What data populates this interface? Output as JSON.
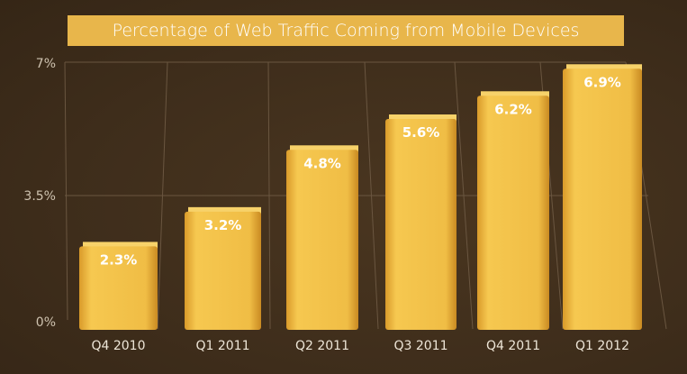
{
  "chart_data": {
    "type": "bar",
    "title": "Percentage of Web Traffic Coming from Mobile Devices",
    "categories": [
      "Q4 2010",
      "Q1 2011",
      "Q2 2011",
      "Q3 2011",
      "Q4 2011",
      "Q1 2012"
    ],
    "values": [
      2.3,
      3.2,
      4.8,
      5.6,
      6.2,
      6.9
    ],
    "data_labels": [
      "2.3%",
      "3.2%",
      "4.8%",
      "5.6%",
      "6.2%",
      "6.9%"
    ],
    "y_ticks": [
      {
        "value": 0,
        "label": "0%"
      },
      {
        "value": 3.5,
        "label": "3.5%"
      },
      {
        "value": 7,
        "label": "7%"
      }
    ],
    "ylim": [
      0,
      7
    ],
    "grid": true,
    "colors": {
      "bar": "#f0bd45",
      "background": "#3e2d1b",
      "title_bar": "#e8b64b"
    }
  }
}
